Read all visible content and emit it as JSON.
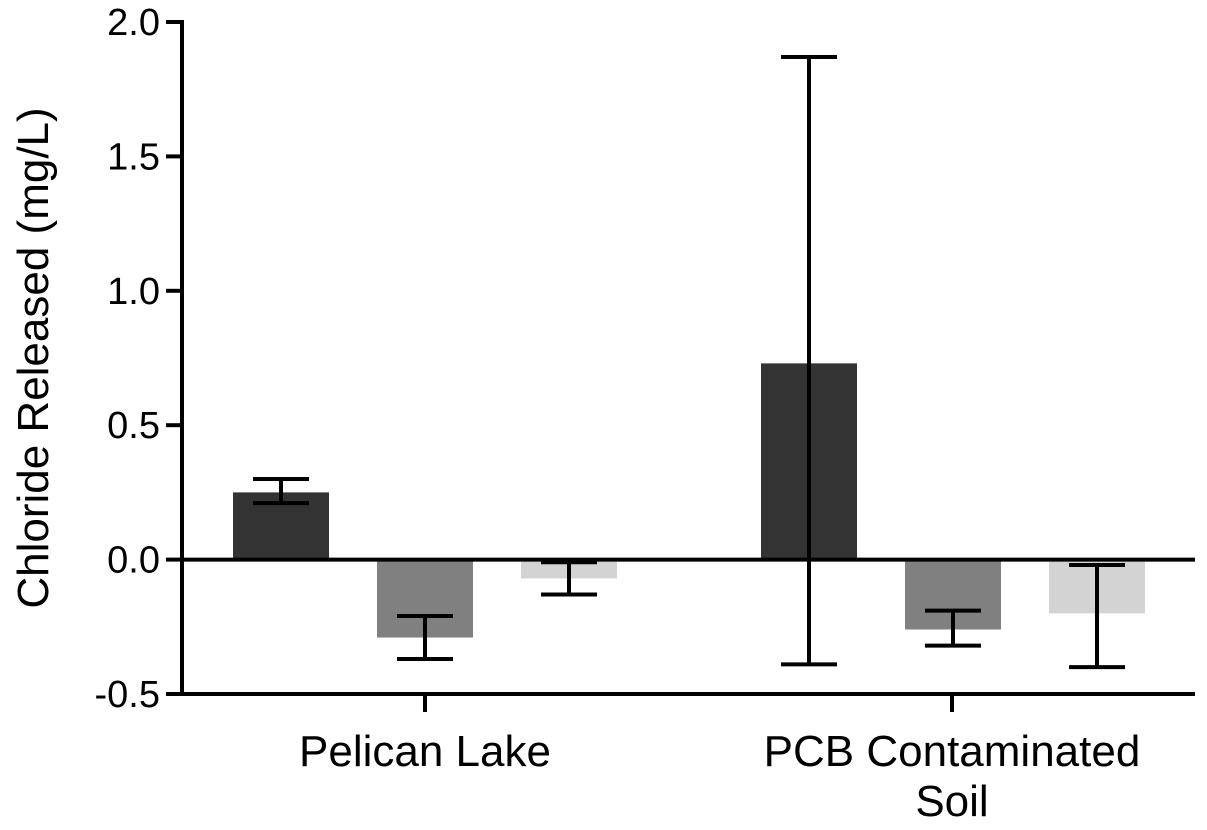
{
  "chart_data": {
    "type": "bar",
    "ylabel": "Chloride Released  (mg/L)",
    "xlabel": "",
    "ylim": [
      -0.5,
      2.0
    ],
    "yticks": [
      -0.5,
      0.0,
      0.5,
      1.0,
      1.5,
      2.0
    ],
    "ytick_labels": [
      "-0.5",
      "0.0",
      "0.5",
      "1.0",
      "1.5",
      "2.0"
    ],
    "categories": [
      {
        "lines": [
          "Pelican Lake"
        ]
      },
      {
        "lines": [
          "PCB Contaminated",
          "Soil"
        ]
      }
    ],
    "series": [
      {
        "color": "#333333",
        "values": [
          0.25,
          0.73
        ],
        "err_low": [
          0.21,
          -0.39
        ],
        "err_high": [
          0.3,
          1.87
        ]
      },
      {
        "color": "#808080",
        "values": [
          -0.29,
          -0.26
        ],
        "err_low": [
          -0.37,
          -0.32
        ],
        "err_high": [
          -0.21,
          -0.19
        ]
      },
      {
        "color": "#d3d3d3",
        "values": [
          -0.07,
          -0.2
        ],
        "err_low": [
          -0.13,
          -0.4
        ],
        "err_high": [
          -0.01,
          -0.02
        ]
      }
    ],
    "grid": false,
    "legend": "none"
  }
}
